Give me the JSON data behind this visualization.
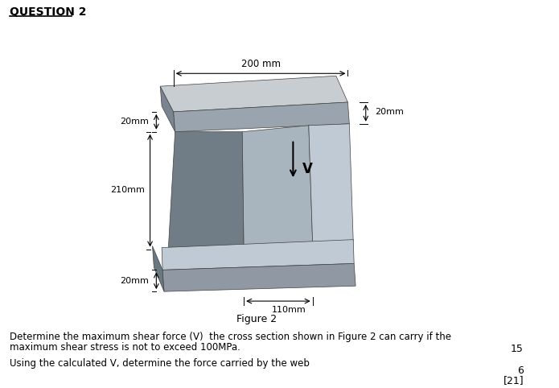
{
  "title": "QUESTION 2",
  "figure_label": "Figure 2",
  "dim_200mm": "200 mm",
  "dim_20mm_top": "20mm",
  "dim_20mm_right": "20mm",
  "dim_210mm": "210mm",
  "dim_20mm_bottom": "20mm",
  "dim_110mm": "110mm",
  "label_V": "V",
  "text_line1": "Determine the maximum shear force (V)  the cross section shown in Figure 2 can carry if the",
  "text_line2": "maximum shear stress is not to exceed 100MPa.",
  "text_line3": "Using the calculated V, determine the force carried by the web",
  "mark_15": "15",
  "mark_6": "6",
  "mark_21": "[21]",
  "bg_color": "#ffffff",
  "c_top": "#c8cdd2",
  "c_front": "#9aa4ae",
  "c_left": "#7a8490",
  "c_web_front": "#a8b4be",
  "c_web_right": "#c0cad4",
  "c_web_left": "#707c86",
  "c_bf_top": "#c0cad4",
  "c_bf_front": "#9098a4",
  "c_bf_left": "#6a7880"
}
